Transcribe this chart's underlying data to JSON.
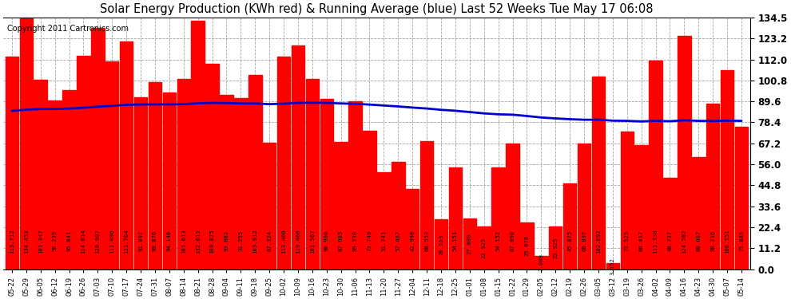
{
  "title": "Solar Energy Production (KWh red) & Running Average (blue) Last 52 Weeks Tue May 17 06:08",
  "copyright": "Copyright 2011 Cartronics.com",
  "bar_color": "#ff0000",
  "avg_line_color": "#0000cc",
  "background_color": "#ffffff",
  "plot_bg_color": "#ffffff",
  "grid_color": "#aaaaaa",
  "ylim": [
    0.0,
    134.5
  ],
  "yticks": [
    0.0,
    11.2,
    22.4,
    33.6,
    44.8,
    56.0,
    67.2,
    78.4,
    89.6,
    100.8,
    112.0,
    123.2,
    134.5
  ],
  "categories": [
    "05-22",
    "05-29",
    "06-05",
    "06-12",
    "06-19",
    "06-26",
    "07-03",
    "07-10",
    "07-17",
    "07-24",
    "07-31",
    "08-07",
    "08-14",
    "08-21",
    "08-28",
    "09-04",
    "09-11",
    "09-18",
    "09-25",
    "10-02",
    "10-09",
    "10-16",
    "10-23",
    "10-30",
    "11-06",
    "11-13",
    "11-20",
    "11-27",
    "12-04",
    "12-11",
    "12-18",
    "12-25",
    "01-01",
    "01-08",
    "01-15",
    "01-22",
    "01-29",
    "02-05",
    "02-12",
    "02-19",
    "02-26",
    "03-05",
    "03-12",
    "03-19",
    "03-26",
    "04-02",
    "04-09",
    "04-16",
    "04-23",
    "04-30",
    "05-07",
    "05-14"
  ],
  "values": [
    113.712,
    134.453,
    101.347,
    90.239,
    95.841,
    114.014,
    128.907,
    111.096,
    121.764,
    91.897,
    99.876,
    94.146,
    101.613,
    132.615,
    109.875,
    93.082,
    91.255,
    103.912,
    67.324,
    113.46,
    119.46,
    101.567,
    90.9,
    67.985,
    89.73,
    73.749,
    51.741,
    57.467,
    42.998,
    68.553,
    26.553,
    54.151,
    27.009,
    22.925,
    54.152,
    67.09,
    25.078,
    7.009,
    22.925,
    45.875,
    66.897,
    102.692,
    3.152,
    73.525,
    66.417,
    111.33,
    48.737,
    124.582,
    60.007,
    88.216,
    106.151,
    75.885
  ],
  "running_avg": [
    84.5,
    85.2,
    85.5,
    85.6,
    85.8,
    86.2,
    86.8,
    87.2,
    87.8,
    87.9,
    88.0,
    88.0,
    88.1,
    88.6,
    88.8,
    88.7,
    88.5,
    88.5,
    88.1,
    88.4,
    88.8,
    88.9,
    88.8,
    88.5,
    88.3,
    87.9,
    87.4,
    86.9,
    86.3,
    85.8,
    85.1,
    84.6,
    83.9,
    83.2,
    82.7,
    82.5,
    81.8,
    81.0,
    80.5,
    80.1,
    79.8,
    79.8,
    79.3,
    79.2,
    78.9,
    79.2,
    79.0,
    79.5,
    79.2,
    79.1,
    79.3,
    79.2
  ]
}
